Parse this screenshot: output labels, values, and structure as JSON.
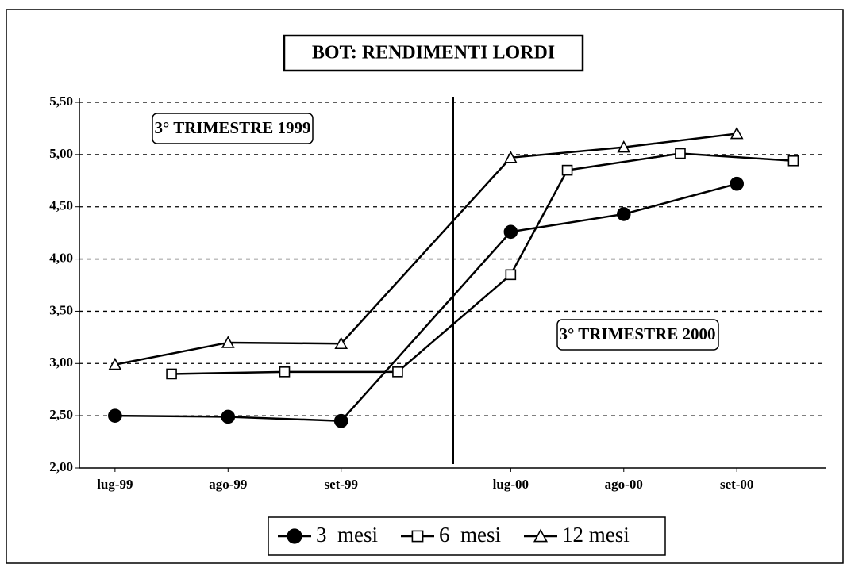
{
  "chart_data": {
    "type": "line",
    "title": "BOT: RENDIMENTI  LORDI",
    "annotations": [
      "3° TRIMESTRE 1999",
      "3° TRIMESTRE 2000"
    ],
    "xticks": [
      {
        "value": 0,
        "label": "lug-99"
      },
      {
        "value": 2,
        "label": "ago-99"
      },
      {
        "value": 4,
        "label": "set-99"
      },
      {
        "value": 7,
        "label": "lug-00"
      },
      {
        "value": 9,
        "label": "ago-00"
      },
      {
        "value": 11,
        "label": "set-00"
      }
    ],
    "xlim": [
      -0.63,
      12.57
    ],
    "ylim": [
      2.0,
      5.5
    ],
    "yticks": [
      {
        "value": 2.0,
        "label": "2,00"
      },
      {
        "value": 2.5,
        "label": "2,50"
      },
      {
        "value": 3.0,
        "label": "3,00"
      },
      {
        "value": 3.5,
        "label": "3,50"
      },
      {
        "value": 4.0,
        "label": "4,00"
      },
      {
        "value": 4.5,
        "label": "4,50"
      },
      {
        "value": 5.0,
        "label": "5,00"
      },
      {
        "value": 5.5,
        "label": "5,50"
      }
    ],
    "grid": true,
    "legend": "bottom",
    "series": [
      {
        "name": "3  mesi",
        "color": "#000000",
        "marker": "circle",
        "x": [
          0,
          2,
          4,
          7,
          9,
          11
        ],
        "values": [
          2.5,
          2.49,
          2.45,
          4.26,
          4.43,
          4.72
        ]
      },
      {
        "name": "6  mesi",
        "color": "#000000",
        "marker": "square",
        "x": [
          1,
          3,
          5,
          7,
          8,
          10,
          12
        ],
        "values": [
          2.9,
          2.92,
          2.92,
          3.85,
          4.85,
          5.01,
          4.94
        ]
      },
      {
        "name": "12 mesi",
        "color": "#000000",
        "marker": "triangle",
        "x": [
          0,
          2,
          4,
          7,
          9,
          11
        ],
        "values": [
          2.99,
          3.2,
          3.19,
          4.97,
          5.07,
          5.2
        ]
      }
    ]
  }
}
